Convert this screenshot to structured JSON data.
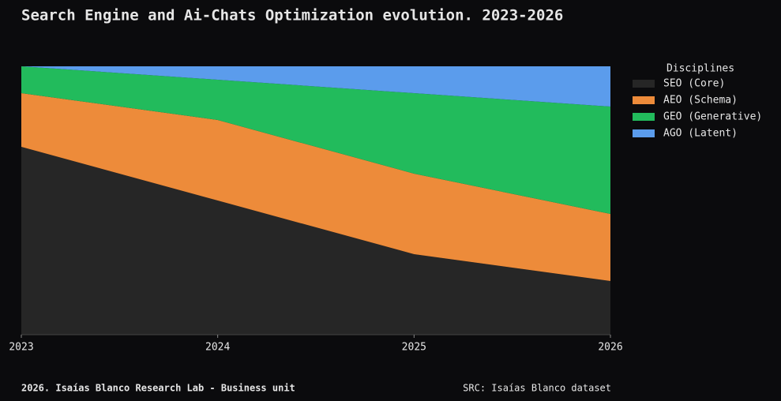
{
  "chart_data": {
    "type": "stacked_area",
    "title": "Search Engine and Ai-Chats Optimization evolution. 2023-2026",
    "x": [
      2023,
      2024,
      2025,
      2026
    ],
    "xlim": [
      2023,
      2026
    ],
    "xticks": [
      2023,
      2024,
      2025,
      2026
    ],
    "ylim": [
      0,
      100
    ],
    "legend_title": "Disciplines",
    "series": [
      {
        "name": "SEO (Core)",
        "color": "#262626",
        "values": [
          70,
          50,
          30,
          20
        ]
      },
      {
        "name": "AEO (Schema)",
        "color": "#ed8b3a",
        "values": [
          20,
          30,
          30,
          25
        ]
      },
      {
        "name": "GEO (Generative)",
        "color": "#22bb5c",
        "values": [
          10,
          15,
          30,
          40
        ]
      },
      {
        "name": "AGO (Latent)",
        "color": "#5b9cec",
        "values": [
          0,
          5,
          10,
          15
        ]
      }
    ],
    "footer_left": "2026. Isaías Blanco Research Lab - Business unit",
    "footer_right": "SRC: Isaías Blanco dataset"
  }
}
